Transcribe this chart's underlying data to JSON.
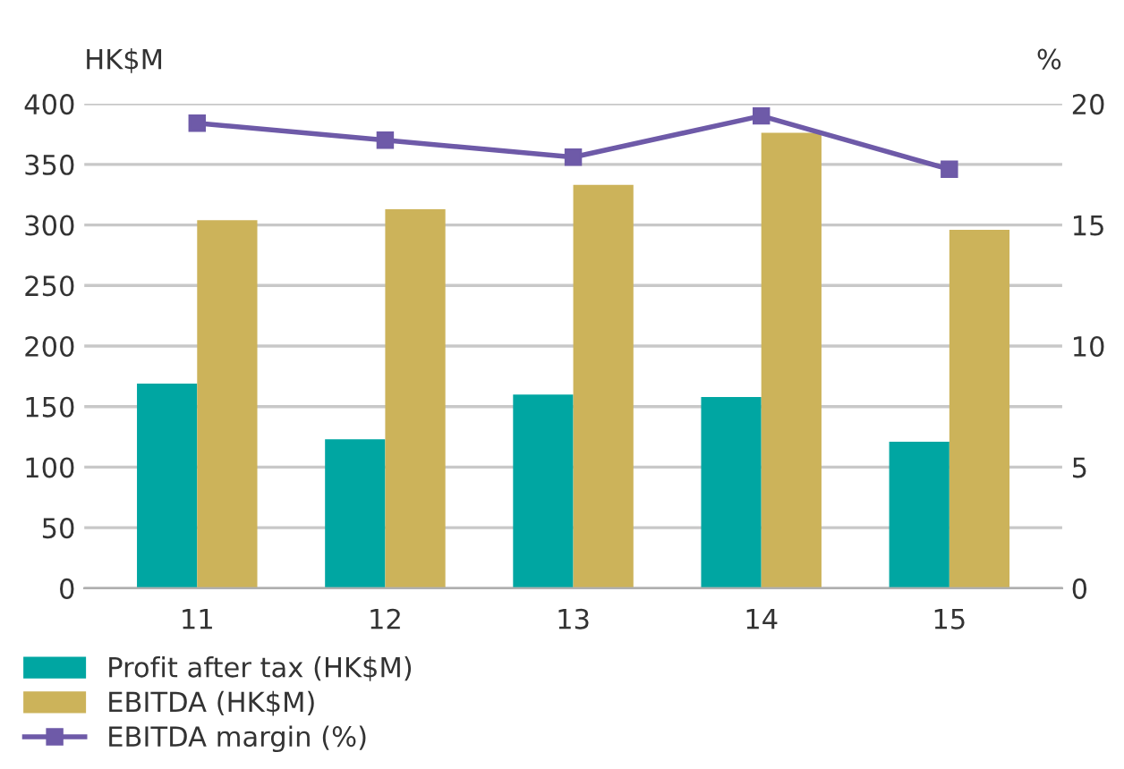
{
  "chart_data": {
    "type": "bar",
    "categories": [
      "11",
      "12",
      "13",
      "14",
      "15"
    ],
    "ylabel": "HK$M",
    "y2label": "%",
    "series": [
      {
        "name": "Profit after tax (HK$M)",
        "color": "#00a6a2",
        "values": [
          169,
          123,
          160,
          158,
          121
        ]
      },
      {
        "name": "EBITDA (HK$M)",
        "color": "#ccb35a",
        "values": [
          304,
          313,
          333,
          376,
          296
        ]
      },
      {
        "name": "EBITDA margin (%)",
        "color": "#6e5aa8",
        "type": "line",
        "axis": "y2",
        "marker": "square",
        "values": [
          19.2,
          18.5,
          17.8,
          19.5,
          17.3
        ]
      }
    ],
    "ylim": [
      0,
      400
    ],
    "yticks": [
      0,
      50,
      100,
      150,
      200,
      250,
      300,
      350,
      400
    ],
    "y2lim": [
      0,
      20
    ],
    "y2ticks": [
      0,
      5,
      10,
      15,
      20
    ],
    "grid": "y",
    "legend": "bottom left"
  }
}
